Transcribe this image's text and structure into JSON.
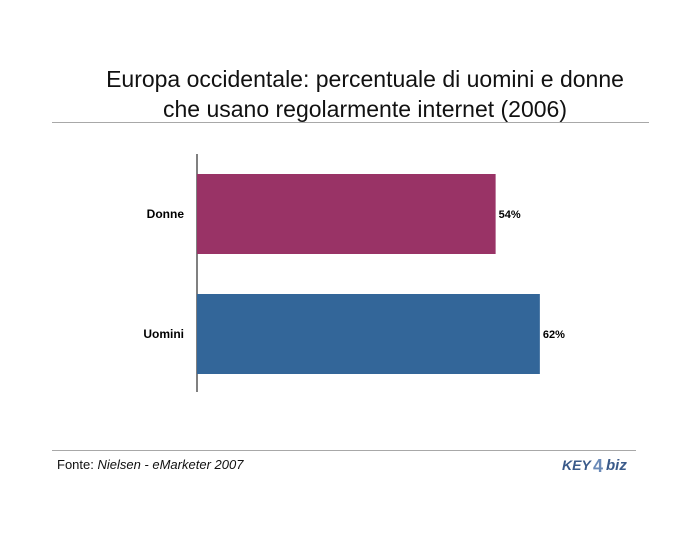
{
  "chart_data": {
    "type": "bar",
    "orientation": "horizontal",
    "title": "Europa occidentale: percentuale di uomini e donne che usano regolarmente internet (2006)",
    "title_lines": [
      "Europa occidentale: percentuale di uomini e donne",
      "che usano regolarmente internet (2006)"
    ],
    "categories": [
      "Donne",
      "Uomini"
    ],
    "values": [
      54,
      62
    ],
    "value_labels": [
      "54%",
      "62%"
    ],
    "xlim": [
      0,
      100
    ],
    "grid": false,
    "colors": [
      "#993366",
      "#336699"
    ]
  },
  "footer": {
    "prefix": "Fonte: ",
    "source": "Nielsen - eMarketer 2007"
  },
  "logo": {
    "text_left": "KEY",
    "number": "4",
    "text_right": "biz",
    "color": "#3a5a8a"
  }
}
